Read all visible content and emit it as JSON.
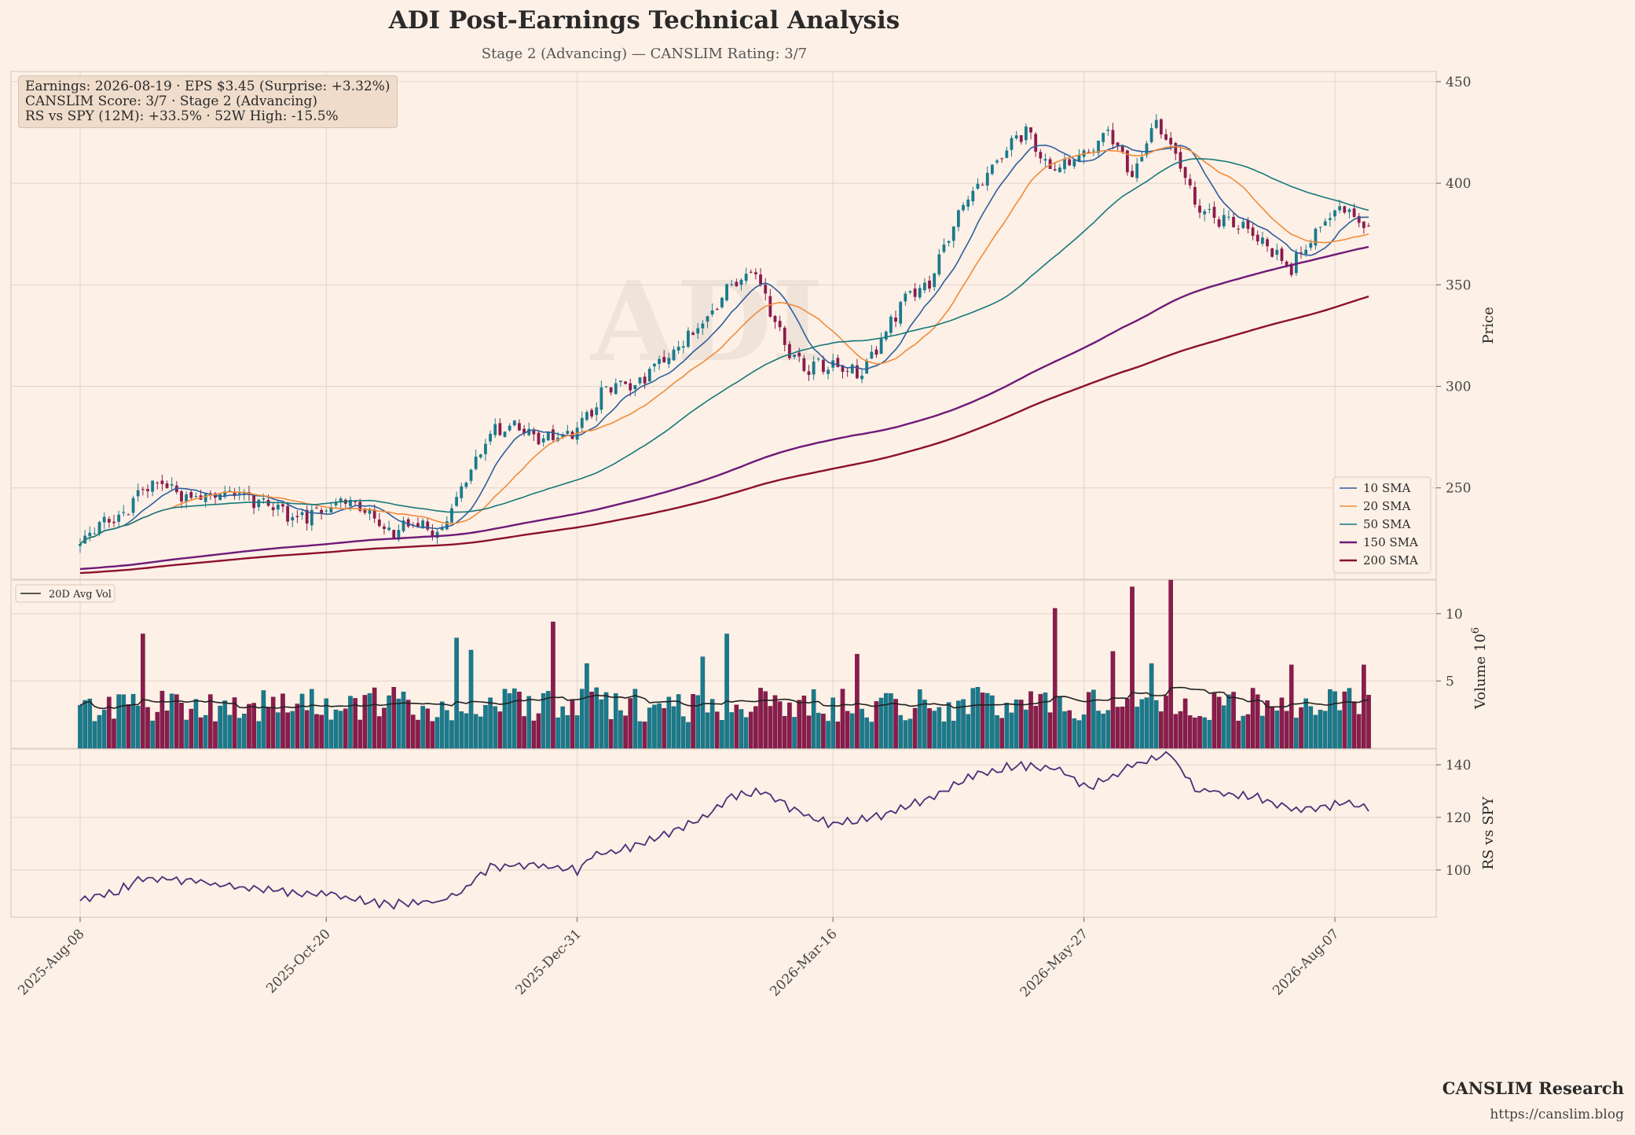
{
  "header": {
    "title": "ADI Post-Earnings Technical Analysis",
    "subtitle": "Stage 2 (Advancing) — CANSLIM Rating: 3/7"
  },
  "info_box": {
    "line1": "Earnings: 2026-08-19 · EPS $3.45 (Surprise: +3.32%)",
    "line2": "CANSLIM Score: 3/7 · Stage 2 (Advancing)",
    "line3": "RS vs SPY (12M): +33.5% · 52W High: -15.5%"
  },
  "watermark": "ADI",
  "brand": {
    "name": "CANSLIM Research",
    "url": "https://canslim.blog"
  },
  "colors": {
    "background": "#fdf0e6",
    "up": "#1a7a8c",
    "down": "#8a1c4c",
    "sma10": "#2c5f9e",
    "sma20": "#f08c3a",
    "sma50": "#16787a",
    "sma150": "#6e1a78",
    "sma200": "#8c1030",
    "avgvol": "#222222",
    "rs": "#4a3078",
    "grid": "#e2d4cc"
  },
  "chart_data": [
    {
      "type": "candlestick",
      "panel": "price",
      "ylabel": "Price",
      "yticks": [
        250,
        300,
        350,
        400,
        450
      ],
      "ylim": [
        205,
        455
      ],
      "x_start_date": "2025-08-08",
      "x_end_date": "2026-08-18",
      "x_tick_labels": [
        "2025-Aug-08",
        "2025-Oct-20",
        "2025-Dec-31",
        "2026-Mar-16",
        "2026-May-27",
        "2026-Aug-07"
      ],
      "close_anchors": [
        [
          "2025-08-08",
          222
        ],
        [
          "2025-08-15",
          233
        ],
        [
          "2025-08-22",
          240
        ],
        [
          "2025-08-29",
          254
        ],
        [
          "2025-09-05",
          247
        ],
        [
          "2025-09-12",
          244
        ],
        [
          "2025-09-19",
          249
        ],
        [
          "2025-09-26",
          246
        ],
        [
          "2025-10-03",
          240
        ],
        [
          "2025-10-10",
          234
        ],
        [
          "2025-10-17",
          240
        ],
        [
          "2025-10-24",
          245
        ],
        [
          "2025-10-31",
          236
        ],
        [
          "2025-11-07",
          228
        ],
        [
          "2025-11-14",
          233
        ],
        [
          "2025-11-21",
          229
        ],
        [
          "2025-11-28",
          255
        ],
        [
          "2025-12-05",
          277
        ],
        [
          "2025-12-12",
          280
        ],
        [
          "2025-12-19",
          276
        ],
        [
          "2025-12-26",
          274
        ],
        [
          "2025-12-31",
          279
        ],
        [
          "2026-01-08",
          299
        ],
        [
          "2026-01-16",
          301
        ],
        [
          "2026-01-23",
          312
        ],
        [
          "2026-01-30",
          322
        ],
        [
          "2026-02-06",
          332
        ],
        [
          "2026-02-13",
          352
        ],
        [
          "2026-02-20",
          356
        ],
        [
          "2026-02-27",
          325
        ],
        [
          "2026-03-06",
          308
        ],
        [
          "2026-03-16",
          312
        ],
        [
          "2026-03-23",
          306
        ],
        [
          "2026-03-30",
          323
        ],
        [
          "2026-04-06",
          345
        ],
        [
          "2026-04-13",
          350
        ],
        [
          "2026-04-20",
          380
        ],
        [
          "2026-04-27",
          400
        ],
        [
          "2026-05-04",
          412
        ],
        [
          "2026-05-11",
          428
        ],
        [
          "2026-05-18",
          405
        ],
        [
          "2026-05-27",
          415
        ],
        [
          "2026-06-03",
          427
        ],
        [
          "2026-06-10",
          405
        ],
        [
          "2026-06-17",
          430
        ],
        [
          "2026-06-22",
          418
        ],
        [
          "2026-06-29",
          392
        ],
        [
          "2026-07-06",
          382
        ],
        [
          "2026-07-13",
          380
        ],
        [
          "2026-07-20",
          368
        ],
        [
          "2026-07-27",
          358
        ],
        [
          "2026-08-03",
          375
        ],
        [
          "2026-08-10",
          390
        ],
        [
          "2026-08-18",
          378
        ]
      ],
      "sma": [
        {
          "name": "10 SMA",
          "period": 10
        },
        {
          "name": "20 SMA",
          "period": 20
        },
        {
          "name": "50 SMA",
          "period": 50
        },
        {
          "name": "150 SMA",
          "period": 150
        },
        {
          "name": "200 SMA",
          "period": 200
        }
      ],
      "legend": [
        "10 SMA",
        "20 SMA",
        "50 SMA",
        "150 SMA",
        "200 SMA"
      ],
      "legend_position": "lower-right",
      "grid": true
    },
    {
      "type": "bar",
      "panel": "volume",
      "ylabel": "Volume",
      "scale_label": "10",
      "scale_exponent": "6",
      "yticks": [
        5,
        10
      ],
      "ylim": [
        0,
        12.5
      ],
      "typical_volume_millions": 3.5,
      "spike_days_millions": [
        [
          "2025-08-27",
          8.5
        ],
        [
          "2025-11-26",
          8.2
        ],
        [
          "2025-12-01",
          7.3
        ],
        [
          "2025-12-24",
          9.4
        ],
        [
          "2026-01-02",
          6.3
        ],
        [
          "2026-02-05",
          6.8
        ],
        [
          "2026-02-12",
          8.5
        ],
        [
          "2026-03-23",
          7.0
        ],
        [
          "2026-05-19",
          10.4
        ],
        [
          "2026-06-04",
          7.2
        ],
        [
          "2026-06-10",
          12.0
        ],
        [
          "2026-06-16",
          6.3
        ],
        [
          "2026-06-22",
          12.5
        ],
        [
          "2026-07-27",
          6.2
        ],
        [
          "2026-08-17",
          6.2
        ]
      ],
      "series": [
        {
          "name": "20D Avg Vol"
        }
      ],
      "legend_position": "upper-left"
    },
    {
      "type": "line",
      "panel": "rs",
      "ylabel": "RS vs SPY",
      "yticks": [
        100,
        120,
        140
      ],
      "ylim": [
        82,
        146
      ],
      "value_anchors": [
        [
          "2025-08-08",
          88
        ],
        [
          "2025-08-20",
          92
        ],
        [
          "2025-08-27",
          97
        ],
        [
          "2025-09-03",
          97
        ],
        [
          "2025-09-15",
          95
        ],
        [
          "2025-09-30",
          93
        ],
        [
          "2025-10-10",
          91
        ],
        [
          "2025-10-20",
          91
        ],
        [
          "2025-10-30",
          88
        ],
        [
          "2025-11-10",
          87
        ],
        [
          "2025-11-20",
          88
        ],
        [
          "2025-11-27",
          92
        ],
        [
          "2025-12-05",
          101
        ],
        [
          "2025-12-17",
          102
        ],
        [
          "2025-12-31",
          100
        ],
        [
          "2026-01-05",
          105
        ],
        [
          "2026-01-20",
          110
        ],
        [
          "2026-02-05",
          120
        ],
        [
          "2026-02-13",
          128
        ],
        [
          "2026-02-23",
          130
        ],
        [
          "2026-03-05",
          122
        ],
        [
          "2026-03-16",
          117
        ],
        [
          "2026-03-30",
          121
        ],
        [
          "2026-04-13",
          127
        ],
        [
          "2026-04-24",
          136
        ],
        [
          "2026-05-08",
          140
        ],
        [
          "2026-05-20",
          138
        ],
        [
          "2026-05-28",
          131
        ],
        [
          "2026-06-10",
          140
        ],
        [
          "2026-06-22",
          144
        ],
        [
          "2026-06-29",
          131
        ],
        [
          "2026-07-15",
          128
        ],
        [
          "2026-07-27",
          123
        ],
        [
          "2026-08-05",
          124
        ],
        [
          "2026-08-12",
          126
        ],
        [
          "2026-08-18",
          123
        ]
      ],
      "grid": true
    }
  ]
}
